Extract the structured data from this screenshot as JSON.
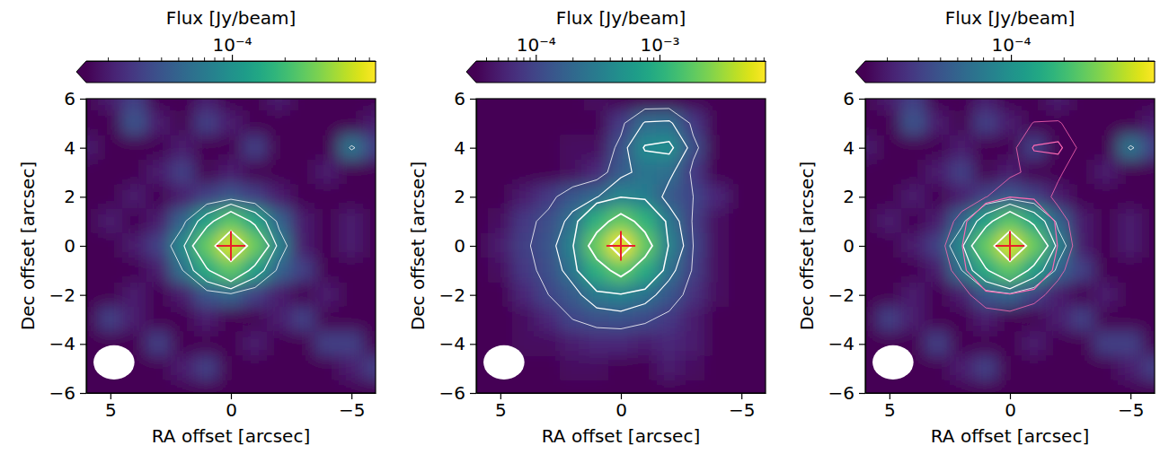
{
  "chart_data": [
    {
      "type": "heatmap",
      "log": true,
      "colorbar_label": "Flux [Jy/beam]",
      "x_label": "RA offset [arcsec]",
      "y_label": "Dec offset [arcsec]",
      "xlim": [
        6,
        -6
      ],
      "xticks": [
        5,
        0,
        {
          "value": -5,
          "label": "−5"
        }
      ],
      "ylim": [
        -6,
        6
      ],
      "yticks": [
        {
          "value": -6,
          "label": "−6"
        },
        {
          "value": -4,
          "label": "−4"
        },
        {
          "value": -2,
          "label": "−2"
        },
        0,
        2,
        4,
        6
      ],
      "color_range": [
        1.5e-05,
        0.00065
      ],
      "color_ticks": [
        {
          "value": 0.0001,
          "label": "10⁻⁴"
        }
      ],
      "color_minor_ticks": [
        2e-05,
        3e-05,
        4e-05,
        5e-05,
        6e-05,
        7e-05,
        8e-05,
        9e-05,
        0.0002,
        0.0003,
        0.0004,
        0.0005,
        0.0006
      ],
      "x": [
        6,
        5,
        4,
        3,
        2,
        1,
        0,
        -1,
        -2,
        -3,
        -4,
        -5,
        -6
      ],
      "y": [
        6,
        5,
        4,
        3,
        2,
        1,
        0,
        -1,
        -2,
        -3,
        -4,
        -5,
        -6
      ],
      "cells": [
        [
          1e-05,
          2e-05,
          3e-05,
          1e-05,
          1e-05,
          2e-05,
          1e-05,
          1e-05,
          2e-05,
          1e-05,
          1e-05,
          1e-05,
          1e-05
        ],
        [
          1e-05,
          1e-05,
          4e-05,
          2e-05,
          1e-05,
          3e-05,
          2e-05,
          1e-05,
          1e-05,
          1e-05,
          1e-05,
          1e-05,
          2e-05
        ],
        [
          2e-05,
          1e-05,
          1e-05,
          1e-05,
          2e-05,
          1e-05,
          1e-05,
          3e-05,
          1e-05,
          1e-05,
          1e-05,
          6.5e-05,
          3e-05
        ],
        [
          1e-05,
          1e-05,
          1e-05,
          2e-05,
          3e-05,
          1e-05,
          2e-05,
          1e-05,
          1e-05,
          1e-05,
          2e-05,
          1e-05,
          1e-05
        ],
        [
          1e-05,
          1e-05,
          2e-05,
          1e-05,
          2e-05,
          3e-05,
          4e-05,
          3e-05,
          2e-05,
          1e-05,
          1e-05,
          1e-05,
          1e-05
        ],
        [
          1e-05,
          2e-05,
          1e-05,
          2e-05,
          5e-05,
          0.00013,
          0.00024,
          0.00014,
          5e-05,
          2e-05,
          1e-05,
          2e-05,
          1e-05
        ],
        [
          1e-05,
          1e-05,
          2e-05,
          3e-05,
          9e-05,
          0.00026,
          0.00052,
          0.00027,
          8e-05,
          2e-05,
          1e-05,
          2e-05,
          1e-05
        ],
        [
          1e-05,
          1e-05,
          1e-05,
          2e-05,
          6e-05,
          0.00015,
          0.00025,
          0.00013,
          5e-05,
          3e-05,
          1e-05,
          1e-05,
          1e-05
        ],
        [
          1e-05,
          1e-05,
          2e-05,
          1e-05,
          2e-05,
          4e-05,
          5e-05,
          3e-05,
          2e-05,
          1e-05,
          2e-05,
          1e-05,
          1e-05
        ],
        [
          1e-05,
          3e-05,
          2e-05,
          1e-05,
          1e-05,
          2e-05,
          1e-05,
          1e-05,
          2e-05,
          3e-05,
          1e-05,
          1e-05,
          1e-05
        ],
        [
          1e-05,
          1e-05,
          1e-05,
          3e-05,
          1e-05,
          1e-05,
          1e-05,
          2e-05,
          1e-05,
          1e-05,
          3e-05,
          3e-05,
          1e-05
        ],
        [
          1e-05,
          1e-05,
          1e-05,
          1e-05,
          2e-05,
          3e-05,
          1e-05,
          1e-05,
          1e-05,
          1e-05,
          1e-05,
          2e-05,
          3e-05
        ],
        [
          1e-05,
          1e-05,
          1e-05,
          1e-05,
          1e-05,
          1e-05,
          1e-05,
          1e-05,
          1e-05,
          1e-05,
          1e-05,
          1e-05,
          1e-05
        ]
      ],
      "contours": [
        {
          "color": "#ffffff",
          "levels": [
            6e-05,
            0.0001,
            0.00016,
            0.00035
          ]
        }
      ],
      "marker": "cross",
      "center": {
        "x": 0,
        "y": 0
      },
      "beam": {
        "x": 4.85,
        "y": -4.75,
        "major": 1.7,
        "minor": 1.4
      }
    },
    {
      "type": "heatmap",
      "log": true,
      "colorbar_label": "Flux [Jy/beam]",
      "x_label": "RA offset [arcsec]",
      "y_label": "Dec offset [arcsec]",
      "xlim": [
        6,
        -6
      ],
      "xticks": [
        5,
        0,
        {
          "value": -5,
          "label": "−5"
        }
      ],
      "ylim": [
        -6,
        6
      ],
      "yticks": [
        {
          "value": -6,
          "label": "−6"
        },
        {
          "value": -4,
          "label": "−4"
        },
        {
          "value": -2,
          "label": "−2"
        },
        0,
        2,
        4,
        6
      ],
      "color_range": [
        3.3e-05,
        0.0072
      ],
      "color_ticks": [
        {
          "value": 0.0001,
          "label": "10⁻⁴"
        },
        {
          "value": 0.001,
          "label": "10⁻³"
        }
      ],
      "color_minor_ticks": [
        4e-05,
        5e-05,
        6e-05,
        7e-05,
        8e-05,
        9e-05,
        0.0002,
        0.0003,
        0.0004,
        0.0005,
        0.0006,
        0.0007,
        0.0008,
        0.0009,
        0.002,
        0.003,
        0.004,
        0.005,
        0.006,
        0.007
      ],
      "x": [
        6,
        5,
        4,
        3,
        2,
        1,
        0,
        -1,
        -2,
        -3,
        -4,
        -5,
        -6
      ],
      "y": [
        6,
        5,
        4,
        3,
        2,
        1,
        0,
        -1,
        -2,
        -3,
        -4,
        -5,
        -6
      ],
      "cells": [
        [
          2e-05,
          3e-05,
          2e-05,
          2e-05,
          3e-05,
          4e-05,
          3e-05,
          2e-05,
          2e-05,
          3e-05,
          2e-05,
          2e-05,
          2e-05
        ],
        [
          2e-05,
          3e-05,
          2e-05,
          2e-05,
          3e-05,
          3e-05,
          8e-05,
          0.00021,
          0.00022,
          8e-05,
          3e-05,
          2e-05,
          2e-05
        ],
        [
          2e-05,
          3e-05,
          2e-05,
          3e-05,
          4e-05,
          4e-05,
          0.00012,
          0.00042,
          0.00046,
          0.00012,
          3e-05,
          2e-05,
          2e-05
        ],
        [
          2e-05,
          2e-05,
          3e-05,
          3e-05,
          4e-05,
          6e-05,
          0.00015,
          0.00026,
          0.00023,
          8e-05,
          3e-05,
          2e-05,
          2e-05
        ],
        [
          2e-05,
          3e-05,
          5e-05,
          8e-05,
          0.00014,
          0.00019,
          0.00038,
          0.00032,
          0.00015,
          0.0001,
          6e-05,
          3e-05,
          2e-05
        ],
        [
          3e-05,
          4e-05,
          8e-05,
          0.00012,
          0.00024,
          0.001,
          0.002,
          0.0011,
          0.00028,
          9e-05,
          4e-05,
          3e-05,
          2e-05
        ],
        [
          3e-05,
          5e-05,
          9e-05,
          0.00013,
          0.00036,
          0.0021,
          0.0065,
          0.002,
          0.00035,
          0.0001,
          4e-05,
          3e-05,
          2e-05
        ],
        [
          2e-05,
          4e-05,
          8e-05,
          0.00012,
          0.00026,
          0.001,
          0.0019,
          0.0009,
          0.00024,
          9e-05,
          4e-05,
          3e-05,
          2e-05
        ],
        [
          2e-05,
          3e-05,
          6e-05,
          0.0001,
          0.00015,
          0.00029,
          0.00035,
          0.00025,
          0.00014,
          7e-05,
          4e-05,
          3e-05,
          2e-05
        ],
        [
          2e-05,
          3e-05,
          4e-05,
          6e-05,
          0.0001,
          0.00012,
          0.000125,
          0.00011,
          8e-05,
          5e-05,
          3e-05,
          2e-05,
          2e-05
        ],
        [
          2e-05,
          3e-05,
          4e-05,
          4e-05,
          5e-05,
          6e-05,
          6e-05,
          5e-05,
          6e-05,
          5e-05,
          3e-05,
          3e-05,
          2e-05
        ],
        [
          2e-05,
          2e-05,
          3e-05,
          3e-05,
          4e-05,
          4e-05,
          3e-05,
          3e-05,
          5e-05,
          4e-05,
          3e-05,
          3e-05,
          2e-05
        ],
        [
          2e-05,
          2e-05,
          2e-05,
          2e-05,
          3e-05,
          3e-05,
          2e-05,
          2e-05,
          2e-05,
          3e-05,
          2e-05,
          2e-05,
          2e-05
        ]
      ],
      "contours": [
        {
          "color": "#ffffff",
          "levels": [
            0.0001,
            0.0002,
            0.0004,
            0.0015,
            0.0045
          ]
        }
      ],
      "marker": "cross",
      "center": {
        "x": 0,
        "y": 0
      },
      "beam": {
        "x": 4.85,
        "y": -4.75,
        "major": 1.7,
        "minor": 1.4
      }
    },
    {
      "type": "heatmap",
      "log": true,
      "colorbar_label": "Flux [Jy/beam]",
      "x_label": "RA offset [arcsec]",
      "y_label": "Dec offset [arcsec]",
      "xlim": [
        6,
        -6
      ],
      "xticks": [
        5,
        0,
        {
          "value": -5,
          "label": "−5"
        }
      ],
      "ylim": [
        -6,
        6
      ],
      "yticks": [
        {
          "value": -6,
          "label": "−6"
        },
        {
          "value": -4,
          "label": "−4"
        },
        {
          "value": -2,
          "label": "−2"
        },
        0,
        2,
        4,
        6
      ],
      "color_range": [
        1.5e-05,
        0.00065
      ],
      "color_ticks": [
        {
          "value": 0.0001,
          "label": "10⁻⁴"
        }
      ],
      "color_minor_ticks": [
        2e-05,
        3e-05,
        4e-05,
        5e-05,
        6e-05,
        7e-05,
        8e-05,
        9e-05,
        0.0002,
        0.0003,
        0.0004,
        0.0005,
        0.0006
      ],
      "x": [
        6,
        5,
        4,
        3,
        2,
        1,
        0,
        -1,
        -2,
        -3,
        -4,
        -5,
        -6
      ],
      "y": [
        6,
        5,
        4,
        3,
        2,
        1,
        0,
        -1,
        -2,
        -3,
        -4,
        -5,
        -6
      ],
      "cells": [
        [
          1e-05,
          2e-05,
          3e-05,
          1e-05,
          1e-05,
          2e-05,
          1e-05,
          1e-05,
          2e-05,
          1e-05,
          1e-05,
          1e-05,
          1e-05
        ],
        [
          1e-05,
          1e-05,
          4e-05,
          2e-05,
          1e-05,
          3e-05,
          2e-05,
          1e-05,
          1e-05,
          1e-05,
          1e-05,
          1e-05,
          2e-05
        ],
        [
          2e-05,
          1e-05,
          1e-05,
          1e-05,
          2e-05,
          1e-05,
          1e-05,
          3e-05,
          1e-05,
          1e-05,
          1e-05,
          6.5e-05,
          3e-05
        ],
        [
          1e-05,
          1e-05,
          1e-05,
          2e-05,
          3e-05,
          1e-05,
          2e-05,
          1e-05,
          1e-05,
          1e-05,
          2e-05,
          1e-05,
          1e-05
        ],
        [
          1e-05,
          1e-05,
          2e-05,
          1e-05,
          2e-05,
          3e-05,
          4e-05,
          3e-05,
          2e-05,
          1e-05,
          1e-05,
          1e-05,
          1e-05
        ],
        [
          1e-05,
          2e-05,
          1e-05,
          2e-05,
          5e-05,
          0.00013,
          0.00024,
          0.00014,
          5e-05,
          2e-05,
          1e-05,
          2e-05,
          1e-05
        ],
        [
          1e-05,
          1e-05,
          2e-05,
          3e-05,
          9e-05,
          0.00026,
          0.00052,
          0.00027,
          8e-05,
          2e-05,
          1e-05,
          2e-05,
          1e-05
        ],
        [
          1e-05,
          1e-05,
          1e-05,
          2e-05,
          6e-05,
          0.00015,
          0.00025,
          0.00013,
          5e-05,
          3e-05,
          1e-05,
          1e-05,
          1e-05
        ],
        [
          1e-05,
          1e-05,
          2e-05,
          1e-05,
          2e-05,
          4e-05,
          5e-05,
          3e-05,
          2e-05,
          1e-05,
          2e-05,
          1e-05,
          1e-05
        ],
        [
          1e-05,
          3e-05,
          2e-05,
          1e-05,
          1e-05,
          2e-05,
          1e-05,
          1e-05,
          2e-05,
          3e-05,
          1e-05,
          1e-05,
          1e-05
        ],
        [
          1e-05,
          1e-05,
          1e-05,
          3e-05,
          1e-05,
          1e-05,
          1e-05,
          2e-05,
          1e-05,
          1e-05,
          3e-05,
          3e-05,
          1e-05
        ],
        [
          1e-05,
          1e-05,
          1e-05,
          1e-05,
          2e-05,
          3e-05,
          1e-05,
          1e-05,
          1e-05,
          1e-05,
          1e-05,
          2e-05,
          3e-05
        ],
        [
          1e-05,
          1e-05,
          1e-05,
          1e-05,
          1e-05,
          1e-05,
          1e-05,
          1e-05,
          1e-05,
          1e-05,
          1e-05,
          1e-05,
          1e-05
        ]
      ],
      "contours": [
        {
          "color": "#ffffff",
          "levels": [
            6e-05,
            0.0001,
            0.00016,
            0.00035
          ]
        },
        {
          "color": "#ff69b4",
          "levels": [
            0.0002,
            0.0004
          ],
          "cells": [
            [
              2e-05,
              3e-05,
              2e-05,
              2e-05,
              3e-05,
              4e-05,
              3e-05,
              2e-05,
              2e-05,
              3e-05,
              2e-05,
              2e-05,
              2e-05
            ],
            [
              2e-05,
              3e-05,
              2e-05,
              2e-05,
              3e-05,
              3e-05,
              8e-05,
              0.00021,
              0.00022,
              8e-05,
              3e-05,
              2e-05,
              2e-05
            ],
            [
              2e-05,
              3e-05,
              2e-05,
              3e-05,
              4e-05,
              4e-05,
              0.00012,
              0.00042,
              0.00046,
              0.00012,
              3e-05,
              2e-05,
              2e-05
            ],
            [
              2e-05,
              2e-05,
              3e-05,
              3e-05,
              4e-05,
              6e-05,
              0.00015,
              0.00026,
              0.00023,
              8e-05,
              3e-05,
              2e-05,
              2e-05
            ],
            [
              2e-05,
              3e-05,
              5e-05,
              8e-05,
              0.00014,
              0.00019,
              0.00038,
              0.00032,
              0.00015,
              0.0001,
              6e-05,
              3e-05,
              2e-05
            ],
            [
              3e-05,
              4e-05,
              8e-05,
              0.00012,
              0.00024,
              0.001,
              0.002,
              0.0011,
              0.00028,
              9e-05,
              4e-05,
              3e-05,
              2e-05
            ],
            [
              3e-05,
              5e-05,
              9e-05,
              0.00013,
              0.00036,
              0.0021,
              0.0065,
              0.002,
              0.00035,
              0.0001,
              4e-05,
              3e-05,
              2e-05
            ],
            [
              2e-05,
              4e-05,
              8e-05,
              0.00012,
              0.00026,
              0.001,
              0.0019,
              0.0009,
              0.00024,
              9e-05,
              4e-05,
              3e-05,
              2e-05
            ],
            [
              2e-05,
              3e-05,
              6e-05,
              0.0001,
              0.00015,
              0.00029,
              0.00035,
              0.00025,
              0.00014,
              7e-05,
              4e-05,
              3e-05,
              2e-05
            ],
            [
              2e-05,
              3e-05,
              4e-05,
              6e-05,
              0.0001,
              0.00012,
              0.000125,
              0.00011,
              8e-05,
              5e-05,
              3e-05,
              2e-05,
              2e-05
            ],
            [
              2e-05,
              3e-05,
              4e-05,
              4e-05,
              5e-05,
              6e-05,
              6e-05,
              5e-05,
              6e-05,
              5e-05,
              3e-05,
              3e-05,
              2e-05
            ],
            [
              2e-05,
              2e-05,
              3e-05,
              3e-05,
              4e-05,
              4e-05,
              3e-05,
              3e-05,
              5e-05,
              4e-05,
              3e-05,
              3e-05,
              2e-05
            ],
            [
              2e-05,
              2e-05,
              2e-05,
              2e-05,
              3e-05,
              3e-05,
              2e-05,
              2e-05,
              2e-05,
              3e-05,
              2e-05,
              2e-05,
              2e-05
            ]
          ]
        }
      ],
      "marker": "cross",
      "center": {
        "x": 0,
        "y": 0
      },
      "beam": {
        "x": 4.85,
        "y": -4.75,
        "major": 1.7,
        "minor": 1.4
      }
    }
  ]
}
